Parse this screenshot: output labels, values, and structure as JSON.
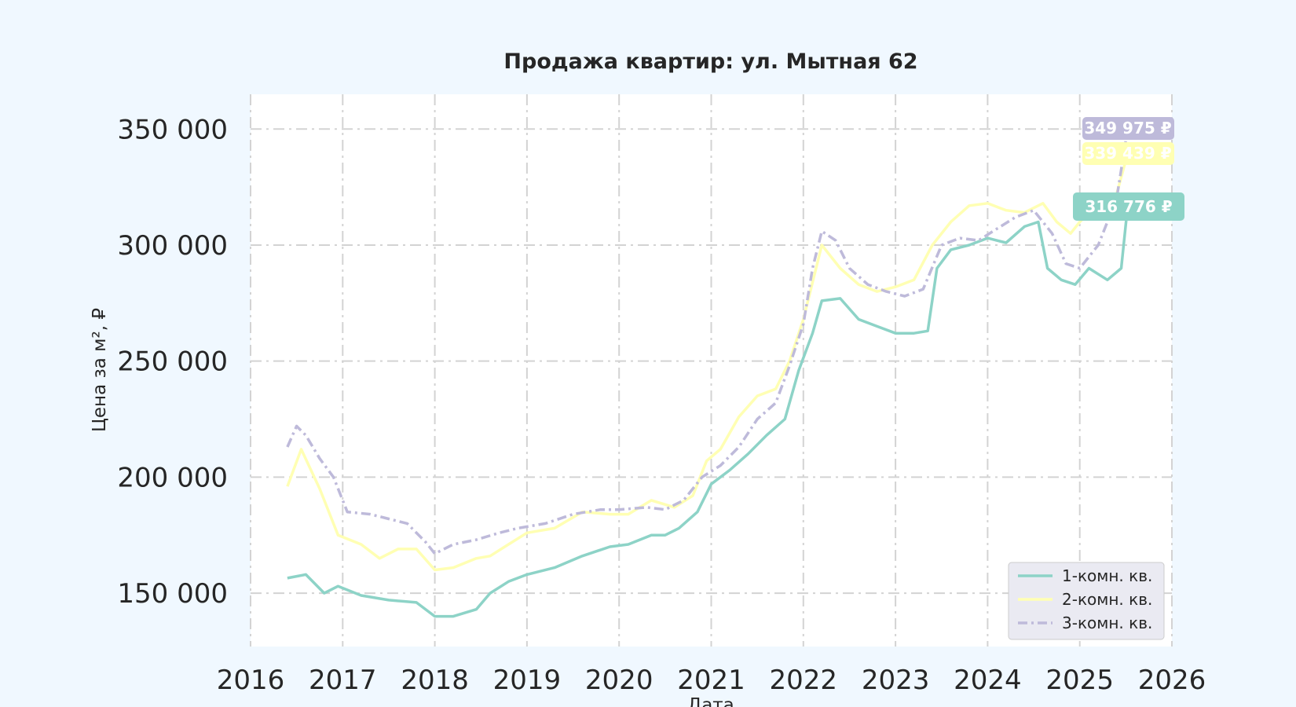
{
  "chart_data": {
    "type": "line",
    "title": "Продажа квартир: ул. Мытная 62",
    "xlabel": "Дата",
    "ylabel": "Цена за м², ₽",
    "x_ticks": [
      "2016",
      "2017",
      "2018",
      "2019",
      "2020",
      "2021",
      "2022",
      "2023",
      "2024",
      "2025",
      "2026"
    ],
    "y_ticks": [
      "150 000",
      "200 000",
      "250 000",
      "300 000",
      "350 000"
    ],
    "xlim": [
      2016.0,
      2026.0
    ],
    "ylim": [
      127000,
      365000
    ],
    "grid": true,
    "legend_position": "bottom-right",
    "series": [
      {
        "name": "1-комн. кв.",
        "color": "#8dd3c7",
        "line_style": "solid",
        "end_label": "316 776 ₽",
        "points": [
          [
            2016.4,
            156500
          ],
          [
            2016.6,
            158000
          ],
          [
            2016.8,
            150000
          ],
          [
            2016.95,
            153000
          ],
          [
            2017.2,
            149000
          ],
          [
            2017.5,
            147000
          ],
          [
            2017.8,
            146000
          ],
          [
            2018.0,
            140000
          ],
          [
            2018.2,
            140000
          ],
          [
            2018.45,
            143000
          ],
          [
            2018.6,
            150000
          ],
          [
            2018.8,
            155000
          ],
          [
            2019.0,
            158000
          ],
          [
            2019.3,
            161000
          ],
          [
            2019.6,
            166000
          ],
          [
            2019.9,
            170000
          ],
          [
            2020.1,
            171000
          ],
          [
            2020.35,
            175000
          ],
          [
            2020.5,
            175000
          ],
          [
            2020.65,
            178000
          ],
          [
            2020.85,
            185000
          ],
          [
            2021.0,
            197000
          ],
          [
            2021.2,
            203000
          ],
          [
            2021.4,
            210000
          ],
          [
            2021.6,
            218000
          ],
          [
            2021.8,
            225000
          ],
          [
            2021.95,
            246000
          ],
          [
            2022.1,
            262000
          ],
          [
            2022.2,
            276000
          ],
          [
            2022.4,
            277000
          ],
          [
            2022.6,
            268000
          ],
          [
            2022.8,
            265000
          ],
          [
            2023.0,
            262000
          ],
          [
            2023.2,
            262000
          ],
          [
            2023.35,
            263000
          ],
          [
            2023.45,
            290000
          ],
          [
            2023.6,
            298000
          ],
          [
            2023.8,
            300000
          ],
          [
            2024.0,
            303000
          ],
          [
            2024.2,
            301000
          ],
          [
            2024.4,
            308000
          ],
          [
            2024.55,
            310000
          ],
          [
            2024.65,
            290000
          ],
          [
            2024.8,
            285000
          ],
          [
            2024.95,
            283000
          ],
          [
            2025.1,
            290000
          ],
          [
            2025.3,
            285000
          ],
          [
            2025.45,
            290000
          ],
          [
            2025.52,
            316776
          ]
        ]
      },
      {
        "name": "2-комн. кв.",
        "color": "#ffffb3",
        "line_style": "solid",
        "end_label": "339 439 ₽",
        "points": [
          [
            2016.4,
            196000
          ],
          [
            2016.55,
            212000
          ],
          [
            2016.75,
            195000
          ],
          [
            2016.95,
            175000
          ],
          [
            2017.2,
            171000
          ],
          [
            2017.4,
            165000
          ],
          [
            2017.6,
            169000
          ],
          [
            2017.8,
            169000
          ],
          [
            2018.0,
            160000
          ],
          [
            2018.2,
            161000
          ],
          [
            2018.45,
            165000
          ],
          [
            2018.6,
            166000
          ],
          [
            2018.8,
            171000
          ],
          [
            2019.0,
            176000
          ],
          [
            2019.3,
            178000
          ],
          [
            2019.6,
            185000
          ],
          [
            2019.9,
            184000
          ],
          [
            2020.1,
            184000
          ],
          [
            2020.35,
            190000
          ],
          [
            2020.6,
            187000
          ],
          [
            2020.8,
            192000
          ],
          [
            2020.95,
            207000
          ],
          [
            2021.1,
            212000
          ],
          [
            2021.3,
            226000
          ],
          [
            2021.5,
            235000
          ],
          [
            2021.7,
            238000
          ],
          [
            2021.85,
            250000
          ],
          [
            2022.0,
            268000
          ],
          [
            2022.2,
            300000
          ],
          [
            2022.4,
            290000
          ],
          [
            2022.6,
            283000
          ],
          [
            2022.8,
            280000
          ],
          [
            2023.0,
            282000
          ],
          [
            2023.2,
            285000
          ],
          [
            2023.4,
            300000
          ],
          [
            2023.6,
            310000
          ],
          [
            2023.8,
            317000
          ],
          [
            2024.0,
            318000
          ],
          [
            2024.2,
            315000
          ],
          [
            2024.4,
            314000
          ],
          [
            2024.6,
            318000
          ],
          [
            2024.75,
            310000
          ],
          [
            2024.9,
            305000
          ],
          [
            2025.0,
            310000
          ],
          [
            2025.2,
            318000
          ],
          [
            2025.4,
            322000
          ],
          [
            2025.52,
            339439
          ]
        ]
      },
      {
        "name": "3-комн. кв.",
        "color": "#bebada",
        "line_style": "dashdot",
        "end_label": "349 975 ₽",
        "points": [
          [
            2016.4,
            213000
          ],
          [
            2016.5,
            222000
          ],
          [
            2016.6,
            218000
          ],
          [
            2016.75,
            208000
          ],
          [
            2016.9,
            200000
          ],
          [
            2017.05,
            185000
          ],
          [
            2017.3,
            184000
          ],
          [
            2017.5,
            182000
          ],
          [
            2017.7,
            180000
          ],
          [
            2017.9,
            172000
          ],
          [
            2018.0,
            167000
          ],
          [
            2018.2,
            171000
          ],
          [
            2018.45,
            173000
          ],
          [
            2018.7,
            176000
          ],
          [
            2018.9,
            178000
          ],
          [
            2019.2,
            180000
          ],
          [
            2019.5,
            184000
          ],
          [
            2019.8,
            186000
          ],
          [
            2020.0,
            186000
          ],
          [
            2020.3,
            187000
          ],
          [
            2020.5,
            186000
          ],
          [
            2020.7,
            190000
          ],
          [
            2020.9,
            200000
          ],
          [
            2021.1,
            205000
          ],
          [
            2021.3,
            213000
          ],
          [
            2021.5,
            225000
          ],
          [
            2021.7,
            232000
          ],
          [
            2021.85,
            248000
          ],
          [
            2022.0,
            266000
          ],
          [
            2022.1,
            290000
          ],
          [
            2022.2,
            306000
          ],
          [
            2022.35,
            302000
          ],
          [
            2022.5,
            290000
          ],
          [
            2022.7,
            283000
          ],
          [
            2022.9,
            280000
          ],
          [
            2023.1,
            278000
          ],
          [
            2023.3,
            281000
          ],
          [
            2023.5,
            300000
          ],
          [
            2023.7,
            303000
          ],
          [
            2023.9,
            302000
          ],
          [
            2024.1,
            307000
          ],
          [
            2024.3,
            312000
          ],
          [
            2024.5,
            315000
          ],
          [
            2024.7,
            305000
          ],
          [
            2024.85,
            292000
          ],
          [
            2025.0,
            290000
          ],
          [
            2025.2,
            300000
          ],
          [
            2025.4,
            320000
          ],
          [
            2025.52,
            349975
          ]
        ]
      }
    ]
  }
}
